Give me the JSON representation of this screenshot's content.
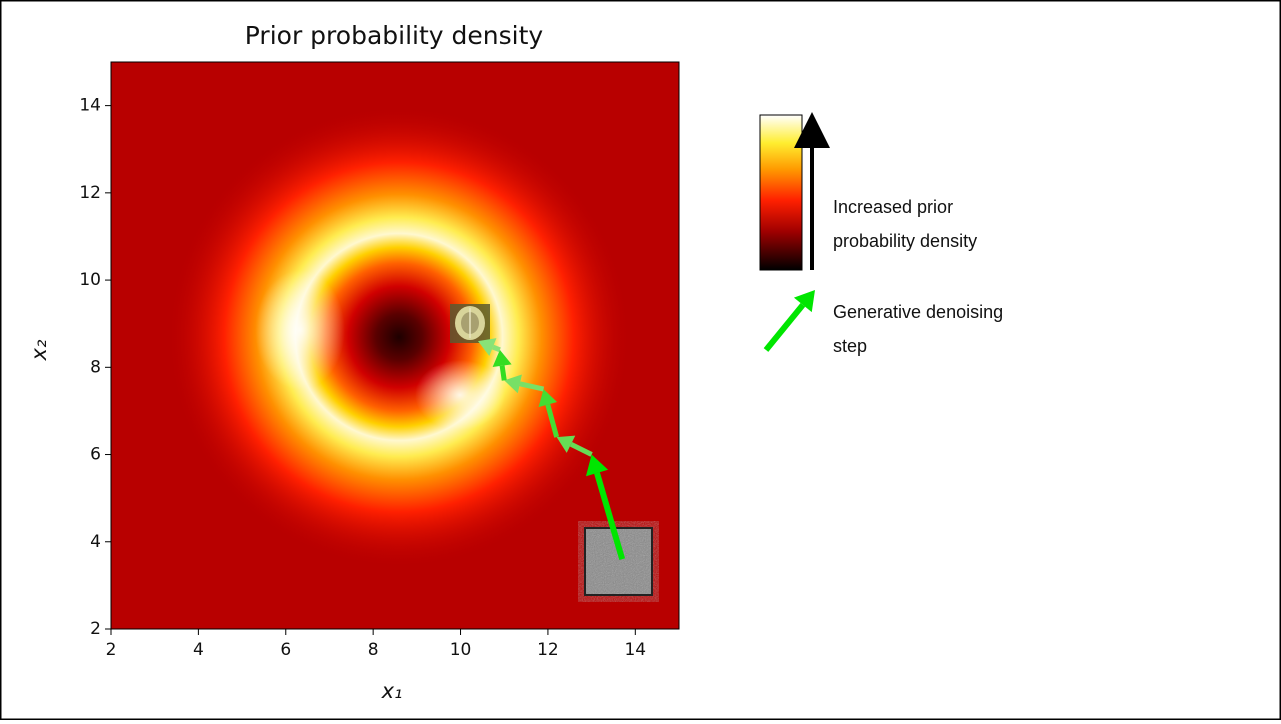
{
  "chart_data": {
    "type": "trajectory",
    "title": "Prior probability density",
    "x_label": "x₁",
    "y_label": "x₂",
    "xlim": [
      2,
      15
    ],
    "ylim": [
      2,
      15
    ],
    "xticks": [
      2,
      4,
      6,
      8,
      10,
      12,
      14
    ],
    "yticks": [
      2,
      4,
      6,
      8,
      10,
      12,
      14
    ],
    "trajectory": {
      "x": [
        13.7,
        13.0,
        12.2,
        11.9,
        11.0,
        10.9,
        10.4
      ],
      "y": [
        3.6,
        6.0,
        6.4,
        7.5,
        7.7,
        8.4,
        8.6
      ],
      "colors": [
        "#00e600",
        "#66dd55",
        "#44dd33",
        "#77e066",
        "#33dd22",
        "#88e377"
      ]
    },
    "legend": {
      "density_label": [
        "Increased prior",
        "probability density"
      ],
      "step_label": [
        "Generative denoising",
        "step"
      ],
      "step_color": "#00e600"
    }
  }
}
